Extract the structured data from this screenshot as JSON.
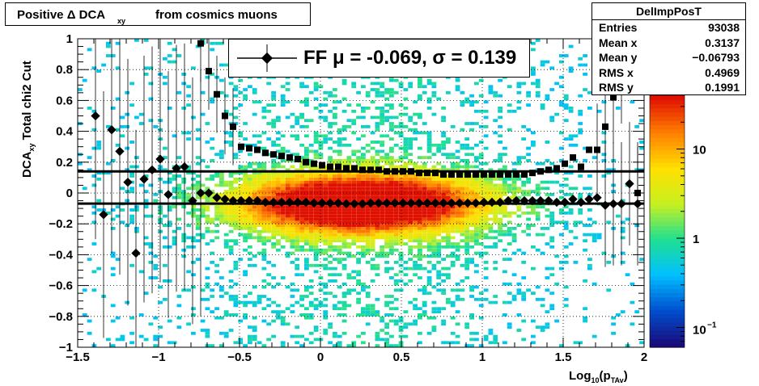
{
  "title": {
    "main": "Positive Δ DCA",
    "subscript": "xy",
    "rest": "from cosmics muons"
  },
  "stats": {
    "name": "DelImpPosT",
    "rows": [
      {
        "label": "Entries",
        "value": "93038"
      },
      {
        "label": "Mean x",
        "value": "0.3137"
      },
      {
        "label": "Mean y",
        "value": "−0.06793"
      },
      {
        "label": "RMS x",
        "value": "0.4969"
      },
      {
        "label": "RMS y",
        "value": "0.1991"
      }
    ]
  },
  "legend": {
    "text": "FF μ = -0.069, σ =   0.139"
  },
  "colors": {
    "mean_marker": "#000000",
    "sigma_marker": "#000000",
    "fit_line": "#000000",
    "palette": [
      "#1a0a7a",
      "#0050d0",
      "#00c0ff",
      "#20e090",
      "#c8f020",
      "#ffe000",
      "#ff8000",
      "#e01000"
    ]
  },
  "chart_data": {
    "type": "heatmap",
    "xlabel": "Log",
    "xlabel_sub1": "10",
    "xlabel_paren": "(p",
    "xlabel_sub2": "TAv",
    "xlabel_close": ")",
    "ylabel": "DCA",
    "ylabel_sub": "xy",
    "ylabel_rest": "Total chi2 Cut",
    "xlim": [
      -1.5,
      2
    ],
    "ylim": [
      -1,
      1
    ],
    "xticks": [
      -1.5,
      -1,
      -0.5,
      0,
      0.5,
      1,
      1.5,
      2
    ],
    "xtick_labels": [
      "−1.5",
      "−1",
      "−0.5",
      "0",
      "0.5",
      "1",
      "1.5",
      "2"
    ],
    "yticks": [
      -1,
      -0.8,
      -0.6,
      -0.4,
      -0.2,
      0,
      0.2,
      0.4,
      0.6,
      0.8,
      1
    ],
    "ytick_labels": [
      "−1",
      "−0.8",
      "−0.6",
      "−0.4",
      "−0.2",
      "0",
      "0.2",
      "0.4",
      "0.6",
      "0.8",
      "1"
    ],
    "grid": true,
    "z_log": true,
    "zlim": [
      0.06,
      40
    ],
    "z_ticks": [
      10,
      1
    ],
    "z_tick_labels": [
      "10",
      "1"
    ],
    "z_tick_small": {
      "base": "10",
      "exp": "−1",
      "value": 0.1
    },
    "fit_lines": [
      0.14,
      -0.069
    ],
    "mean_series": {
      "name": "mean",
      "x": [
        -1.39,
        -1.34,
        -1.29,
        -1.24,
        -1.19,
        -1.14,
        -1.09,
        -1.04,
        -0.99,
        -0.94,
        -0.89,
        -0.84,
        -0.79,
        -0.74,
        -0.69,
        -0.64,
        -0.59,
        -0.54,
        -0.49,
        -0.44,
        -0.39,
        -0.34,
        -0.29,
        -0.24,
        -0.19,
        -0.14,
        -0.09,
        -0.04,
        0.01,
        0.06,
        0.11,
        0.16,
        0.21,
        0.26,
        0.31,
        0.36,
        0.41,
        0.46,
        0.51,
        0.56,
        0.61,
        0.66,
        0.71,
        0.76,
        0.81,
        0.86,
        0.91,
        0.96,
        1.01,
        1.06,
        1.11,
        1.16,
        1.21,
        1.26,
        1.31,
        1.36,
        1.41,
        1.46,
        1.51,
        1.56,
        1.61,
        1.66,
        1.71,
        1.76,
        1.81,
        1.86,
        1.91,
        1.96
      ],
      "y": [
        0.5,
        -0.14,
        0.41,
        0.27,
        0.07,
        -0.39,
        0.09,
        0.15,
        0.22,
        -0.01,
        0.16,
        0.17,
        -0.05,
        0.0,
        0.0,
        -0.03,
        -0.04,
        -0.05,
        -0.05,
        -0.05,
        -0.05,
        -0.06,
        -0.06,
        -0.06,
        -0.06,
        -0.06,
        -0.06,
        -0.065,
        -0.065,
        -0.065,
        -0.065,
        -0.07,
        -0.07,
        -0.07,
        -0.065,
        -0.065,
        -0.065,
        -0.065,
        -0.065,
        -0.065,
        -0.065,
        -0.065,
        -0.065,
        -0.065,
        -0.065,
        -0.065,
        -0.065,
        -0.065,
        -0.06,
        -0.06,
        -0.06,
        -0.05,
        -0.05,
        -0.05,
        -0.05,
        -0.05,
        -0.05,
        -0.06,
        -0.06,
        -0.04,
        -0.06,
        -0.04,
        -0.03,
        -0.08,
        -0.07,
        -0.07,
        0.06,
        -0.07
      ]
    },
    "sigma_series": {
      "name": "sigma",
      "x": [
        -0.74,
        -0.69,
        -0.64,
        -0.59,
        -0.54,
        -0.49,
        -0.44,
        -0.39,
        -0.34,
        -0.29,
        -0.24,
        -0.19,
        -0.14,
        -0.09,
        -0.04,
        0.01,
        0.06,
        0.11,
        0.16,
        0.21,
        0.26,
        0.31,
        0.36,
        0.41,
        0.46,
        0.51,
        0.56,
        0.61,
        0.66,
        0.71,
        0.76,
        0.81,
        0.86,
        0.91,
        0.96,
        1.01,
        1.06,
        1.11,
        1.16,
        1.21,
        1.26,
        1.31,
        1.36,
        1.41,
        1.46,
        1.51,
        1.56,
        1.61,
        1.66,
        1.71,
        1.76,
        1.81,
        1.86,
        1.91,
        1.96
      ],
      "y": [
        0.97,
        0.79,
        0.64,
        0.5,
        0.43,
        0.3,
        0.29,
        0.28,
        0.26,
        0.25,
        0.24,
        0.23,
        0.22,
        0.2,
        0.19,
        0.18,
        0.17,
        0.17,
        0.16,
        0.16,
        0.15,
        0.15,
        0.15,
        0.14,
        0.14,
        0.14,
        0.14,
        0.13,
        0.13,
        0.13,
        0.12,
        0.12,
        0.12,
        0.12,
        0.12,
        0.12,
        0.12,
        0.12,
        0.12,
        0.12,
        0.12,
        0.13,
        0.14,
        0.15,
        0.16,
        0.19,
        0.23,
        0.17,
        0.28,
        0.28,
        0.43,
        0.62,
        0.75,
        0.94,
        0.0
      ]
    }
  }
}
